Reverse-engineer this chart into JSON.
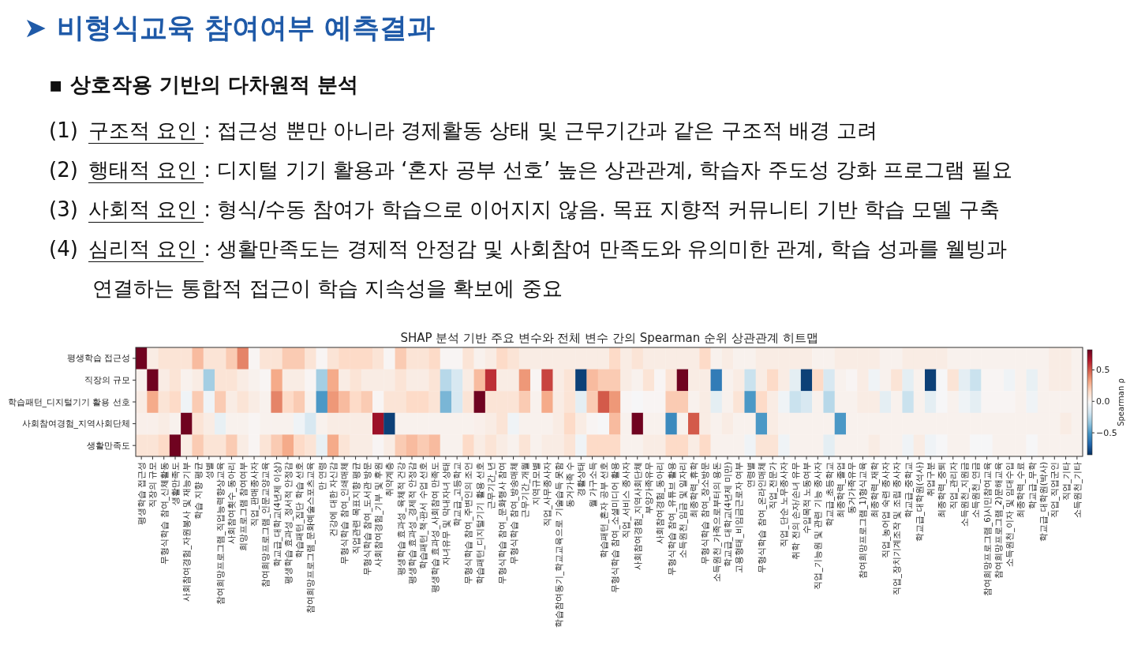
{
  "chart_data": [
    {
      "type": "other",
      "title": "➤ 비형식교육 참여여부 예측결과",
      "subtitle": "▪ 상호작용 기반의 다차원적 분석",
      "annotations": [
        "(1) 구조적 요인 : 접근성 뿐만 아니라 경제활동 상태 및 근무기간과 같은 구조적 배경 고려",
        "(2) 행태적 요인 : 디지털 기기 활용과 ‘혼자 공부 선호’ 높은 상관관계, 학습자 주도성 강화 프로그램 필요",
        "(3) 사회적 요인 : 형식/수동 참여가 학습으로 이어지지 않음. 목표 지향적 커뮤니티 기반 학습 모델 구축",
        "(4) 심리적 요인 : 생활만족도는 경제적 안정감 및 사회참여 만족도와 유의미한 관계, 학습 성과를 웰빙과 연결하는 통합적 접근이 학습 지속성을 확보에 중요"
      ]
    },
    {
      "type": "heatmap",
      "title": "SHAP 분석 기반 주요 변수와 전체 변수 간의 Spearman 순위 상관관계 히트맵",
      "clabel": "Spearman ρ",
      "clim": [
        -0.85,
        0.82
      ],
      "cticks": [
        0.5,
        {
          "value": 0,
          "label": "0.0"
        },
        {
          "value": -0.5,
          "label": "−0.5"
        }
      ],
      "y_categories": [
        "평생학습 접근성",
        "직장의 규모",
        "학습패턴_디지털기기 활용 선호",
        "사회참여경험_지역사회단체",
        "생활만족도"
      ],
      "categories": [
        "평생학습 접근성",
        "직장의 규모",
        "무형식학습 참여_신체활동",
        "생활만족도",
        "사회참여경험_자원봉사 및 재능기부",
        "학습 지향 평균",
        "성별",
        "참여희망프로그램_직업능력향상교육",
        "사회참여횟수_동아리",
        "희망프로그램 참여여부",
        "직업_판매종사자",
        "참여희망프로그램_인문교양교육",
        "학교급_대학교(4년제 이상)",
        "평생학습 효과성_정서적 안정감",
        "학습패턴_집단 학습 선호",
        "참여희망프로그램_문화예술스포츠교육",
        "만 연령",
        "건강에 대한 자신감",
        "무형식학습 참여_인쇄매체",
        "직업관련 목표지향 평균",
        "무형식학습 참여_도서관 방문",
        "사회참여경험_기부 및 후원",
        "취약계층",
        "평생학습 효과성_육체적 건강",
        "평생학습 효과성_경제적 안정감",
        "학습패턴_책·판서 수업 선호",
        "평생학습 효과성_사회참여 만족도",
        "자녀유무 및 막내자녀 상태",
        "학교급_고등학교",
        "무형식학습 참여_주변인의 조언",
        "학습패턴_디지털기기 활용 선호",
        "근무기간_년",
        "무형식학습 참여_문화행사 참여",
        "무형식학습 참여_방송매체",
        "근무기간_개월",
        "지역규모별",
        "직업_사무종사자",
        "학습참여동기_학교교육으로 기술습득 못함",
        "동거가족 수",
        "경활상태",
        "월 가구소득",
        "학습패턴_혼자 공부 선호",
        "무형식학습 참여_소셜미디어 활용",
        "직업_서비스 종사자",
        "사회참여경험_지역사회단체",
        "부양가족유무",
        "사회참여경험_동아리",
        "무형식학습 참여_유튜브 활용",
        "소득원천_임금 및 일자리",
        "최종학력_휴학",
        "무형식학습 참여_장소방문",
        "소득원천_가족으로부터의 용돈",
        "학교급_대학교(4년제 미만)",
        "고용형태_비임금근로자 여부",
        "연령별",
        "무형식학습 참여_온라인매체",
        "직업_전문가",
        "직업_단순 노무종사자",
        "취학 전의 손자/손녀 유무",
        "수입목적 노동여부",
        "직업_기능원 및 관련 기능 종사자",
        "학교급_초등학교",
        "최종학력_졸업",
        "동거가족유무",
        "참여희망프로그램_1)형식교육",
        "최종학력_재학",
        "직업_농어업 숙련 종사자",
        "직업_장치기계조작 및 조립 종사자",
        "학교급_중학교",
        "학교급_대학원(석사)",
        "취업구분",
        "최종학력_중퇴",
        "직업_관리자",
        "소득원천_지원금",
        "소득원천_연금",
        "참여희망프로그램_6)시민참여교육",
        "참여희망프로그램_2)문해교육",
        "소득원천_이자 및 임대수입",
        "최종학력_수료",
        "학교급_무학",
        "학교급_대학원(박사)",
        "직업_직업군인",
        "직업_기타",
        "소득원천_기타"
      ],
      "cells": [
        [
          0.8,
          0.05,
          0.1,
          0.1,
          0.1,
          0.25,
          0.1,
          0.1,
          0.2,
          0.4,
          0,
          0.1,
          0.1,
          0.2,
          0.2,
          0.1,
          0,
          0.1,
          0.15,
          0.15,
          0.15,
          0.1,
          0,
          0.2,
          0.1,
          0.1,
          0.15,
          0,
          0,
          0.1,
          0.02,
          0.05,
          0.15,
          0.1,
          0.05,
          0.05,
          0.05,
          0.05,
          0.05,
          0.05,
          0.05,
          0.05,
          0.15,
          0.05,
          0.1,
          0.05,
          0.05,
          0.05,
          0.05,
          0.05,
          0.15,
          0.02,
          0.05,
          0.02,
          0.02,
          0.05,
          0.05,
          0.05,
          0.05,
          0.05,
          0.02,
          0.02,
          0.05,
          0.05,
          0.05,
          0.05,
          0.02,
          0.02,
          0.05,
          0.05,
          0.05,
          0.05,
          0.02,
          0.02,
          0.02,
          0.02,
          0.02,
          0.02,
          0.02,
          0.02,
          0.02,
          0.05,
          0.05,
          0.02
        ],
        [
          0.02,
          0.8,
          0.05,
          0.1,
          0.02,
          0.05,
          -0.3,
          0.1,
          0.1,
          0.05,
          0.02,
          0,
          0.3,
          0.05,
          0.05,
          0,
          -0.3,
          0.3,
          0.05,
          0.1,
          0.05,
          0.05,
          0.05,
          0.1,
          0.05,
          0.05,
          0.1,
          -0.25,
          -0.15,
          0.05,
          0.25,
          0.6,
          0.05,
          0.05,
          0.35,
          0,
          0.55,
          0.05,
          0.1,
          -0.8,
          0.25,
          0.2,
          0.2,
          0.05,
          0.02,
          0.1,
          0,
          0.1,
          0.8,
          0.05,
          0.05,
          -0.6,
          0.02,
          0.05,
          -0.2,
          0.05,
          0.15,
          0.05,
          -0.1,
          -0.8,
          0.15,
          -0.15,
          0.02,
          0,
          0.05,
          -0.05,
          0.02,
          0.1,
          -0.1,
          0.02,
          -0.8,
          -0.02,
          0.1,
          -0.1,
          -0.2,
          0,
          0,
          -0.05,
          0.02,
          -0.08,
          0.02,
          0.05,
          0.05,
          0.02
        ],
        [
          0.05,
          0.3,
          0.1,
          0.15,
          -0.05,
          0.2,
          -0.05,
          0.2,
          0.05,
          0.1,
          0.05,
          0.02,
          0.4,
          0.15,
          0.2,
          0.02,
          -0.5,
          0.35,
          0.25,
          0.15,
          0.2,
          0,
          0.1,
          0.1,
          0.15,
          0.15,
          0.1,
          -0.4,
          -0.15,
          0.1,
          0.8,
          0.1,
          0.1,
          0.1,
          0.2,
          0.02,
          0.3,
          0.05,
          0.1,
          -0.1,
          0.2,
          0.5,
          0.35,
          0,
          -0.02,
          0,
          0,
          0.2,
          0.2,
          0.02,
          0.05,
          -0.1,
          0.02,
          0.1,
          -0.5,
          0.15,
          0.05,
          -0.05,
          -0.2,
          -0.15,
          0.02,
          -0.25,
          0.02,
          0.02,
          0.05,
          0.05,
          -0.1,
          0.02,
          -0.2,
          0.02,
          -0.1,
          -0.02,
          0.02,
          -0.05,
          -0.1,
          0,
          0,
          0,
          0.02,
          -0.05,
          0.02,
          0.02,
          0.02,
          0.02
        ],
        [
          0.03,
          0.03,
          0.05,
          0.02,
          0.8,
          0.1,
          0.05,
          -0.08,
          0.02,
          0.02,
          0,
          0.02,
          0.02,
          0.02,
          -0.05,
          -0.15,
          0.02,
          0.05,
          0.05,
          0.05,
          0.05,
          0.7,
          -0.8,
          0.02,
          0.02,
          0.02,
          0.02,
          0.02,
          0.02,
          0.02,
          0.03,
          0.05,
          0.1,
          -0.05,
          0.02,
          0.02,
          0.02,
          0.05,
          0.15,
          0.05,
          0,
          -0.02,
          0.25,
          0.02,
          0.8,
          0.02,
          0.02,
          -0.55,
          0.02,
          0.5,
          0.05,
          0.02,
          0.05,
          0.02,
          0.02,
          -0.5,
          0.05,
          0.02,
          0.02,
          0.02,
          0.02,
          0.02,
          -0.5,
          0.02,
          0.02,
          0.02,
          0.02,
          0.02,
          0.02,
          0.02,
          0.02,
          0.02,
          0.02,
          0.02,
          0.02,
          0.02,
          0.02,
          0.02,
          0.02,
          0.02,
          0.02,
          0.02,
          0.05,
          0.02
        ],
        [
          0.1,
          0.1,
          0.15,
          0.8,
          0.05,
          0.2,
          0.1,
          0.1,
          0.2,
          0.05,
          0,
          0.1,
          0.2,
          0.3,
          0.15,
          0.1,
          -0.08,
          0.3,
          0.1,
          0.05,
          0.05,
          0,
          0.05,
          0.2,
          0.25,
          0.2,
          0.25,
          0.02,
          0.02,
          0.15,
          0.05,
          0.1,
          0.05,
          0.02,
          0.1,
          0.02,
          0.05,
          0.05,
          0.1,
          -0.05,
          0.15,
          0.15,
          0.15,
          0.02,
          0.02,
          0.05,
          0.05,
          0.15,
          0.15,
          0.05,
          0.15,
          0.02,
          0.02,
          0.02,
          -0.05,
          0.1,
          0.1,
          -0.05,
          0.02,
          0.02,
          0.02,
          -0.1,
          0.02,
          0.02,
          0.02,
          0.05,
          0.02,
          0.02,
          -0.05,
          0.05,
          -0.05,
          -0.02,
          0.02,
          0.02,
          -0.02,
          -0.02,
          0.02,
          0.02,
          0.02,
          -0.02,
          0.02,
          0.02,
          0.02,
          0.02
        ]
      ]
    }
  ]
}
